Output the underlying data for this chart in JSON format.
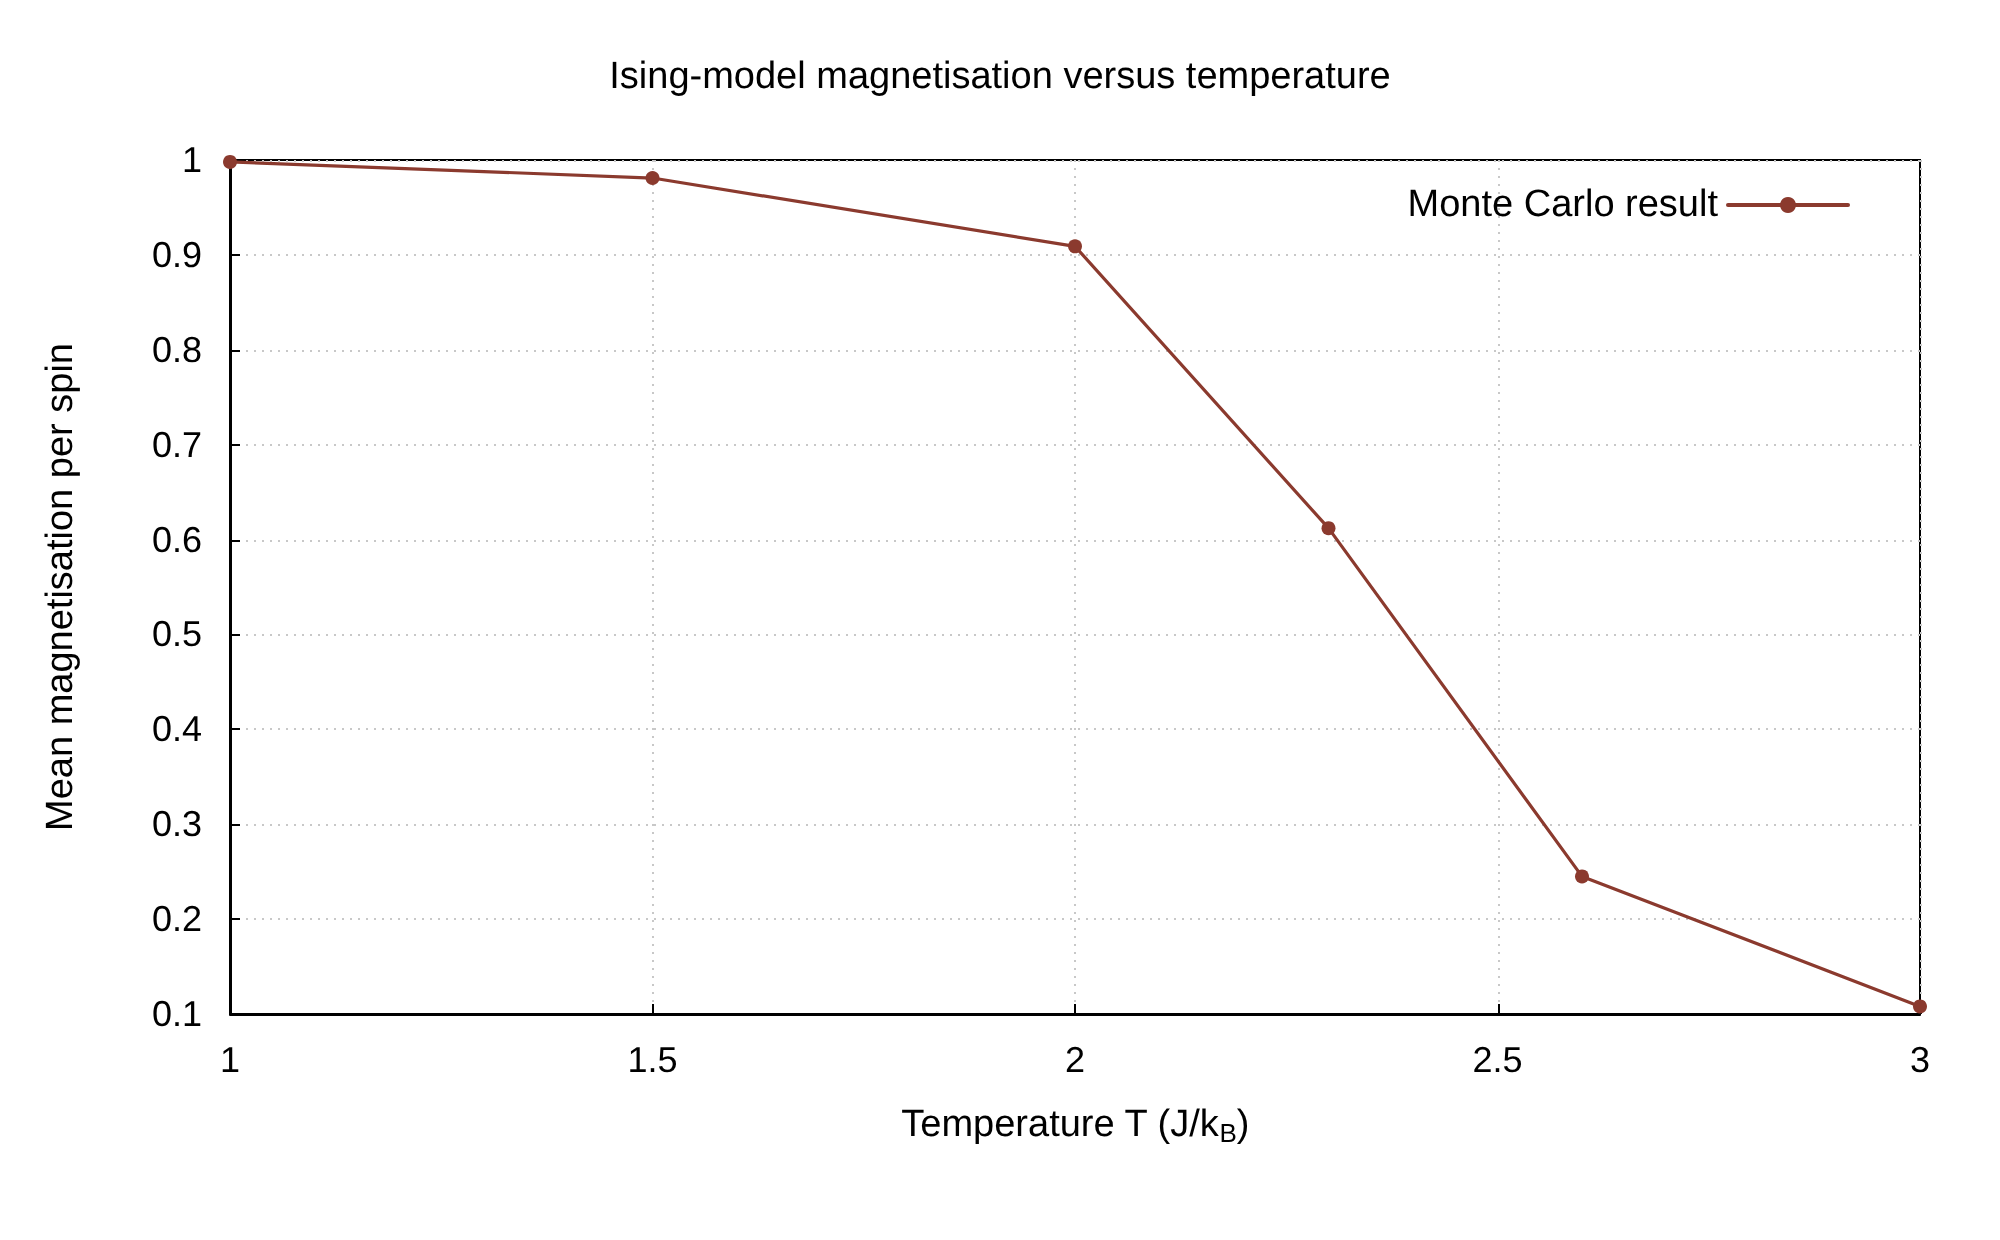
{
  "chart_data": {
    "type": "line",
    "title": "Ising-model magnetisation versus temperature",
    "xlabel": "Temperature T (J/k$_{B}$)",
    "ylabel": "Mean magnetisation per spin",
    "x": [
      1,
      1.5,
      2,
      2.3,
      2.6,
      3
    ],
    "series": [
      {
        "name": "Monte Carlo result",
        "color": "#8b3a2e",
        "values": [
          0.998,
          0.981,
          0.909,
          0.612,
          0.245,
          0.108
        ]
      }
    ],
    "xlim": [
      1,
      3
    ],
    "xticks": [
      1,
      1.5,
      2,
      2.5,
      3
    ],
    "ylim": [
      0.1,
      1
    ],
    "yticks": [
      0.1,
      0.2,
      0.3,
      0.4,
      0.5,
      0.6,
      0.7,
      0.8,
      0.9,
      1
    ],
    "grid": true,
    "legend": "top right",
    "marker": "circle",
    "line_style": "solid"
  }
}
